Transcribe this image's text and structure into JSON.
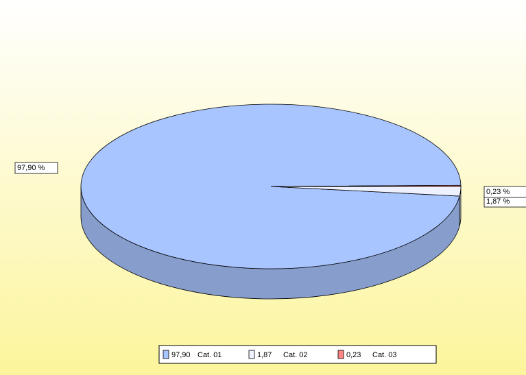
{
  "chart_data": {
    "type": "pie",
    "categories": [
      "Cat. 01",
      "Cat. 02",
      "Cat. 03"
    ],
    "values": [
      97.9,
      1.87,
      0.23
    ],
    "value_labels": [
      "97,90 %",
      "1,87 %",
      "0,23 %"
    ],
    "legend_value_labels": [
      "97,90",
      "1,87",
      "0,23"
    ],
    "colors": [
      "#a9c5ff",
      "#eef1ff",
      "#ff8585"
    ]
  }
}
